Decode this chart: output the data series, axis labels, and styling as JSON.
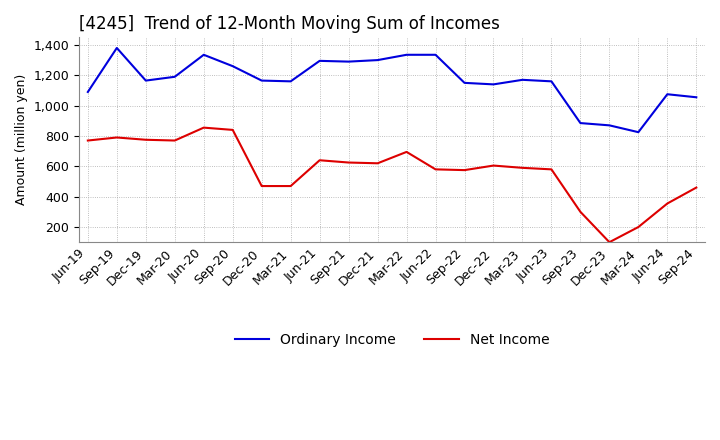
{
  "title": "[4245]  Trend of 12-Month Moving Sum of Incomes",
  "ylabel": "Amount (million yen)",
  "title_fontsize": 12,
  "label_fontsize": 9,
  "tick_fontsize": 9,
  "background_color": "#ffffff",
  "grid_color": "#aaaaaa",
  "ordinary_income_color": "#0000dd",
  "net_income_color": "#dd0000",
  "x_labels": [
    "Jun-19",
    "Sep-19",
    "Dec-19",
    "Mar-20",
    "Jun-20",
    "Sep-20",
    "Dec-20",
    "Mar-21",
    "Jun-21",
    "Sep-21",
    "Dec-21",
    "Mar-22",
    "Jun-22",
    "Sep-22",
    "Dec-22",
    "Mar-23",
    "Jun-23",
    "Sep-23",
    "Dec-23",
    "Mar-24",
    "Jun-24",
    "Sep-24"
  ],
  "ordinary_income": [
    1090,
    1380,
    1165,
    1190,
    1335,
    1260,
    1165,
    1160,
    1295,
    1290,
    1300,
    1335,
    1335,
    1150,
    1140,
    1170,
    1160,
    885,
    870,
    825,
    1075,
    1055
  ],
  "net_income": [
    770,
    790,
    775,
    770,
    855,
    840,
    470,
    470,
    640,
    625,
    620,
    695,
    580,
    575,
    605,
    590,
    580,
    300,
    100,
    200,
    355,
    460
  ],
  "ylim": [
    100,
    1450
  ],
  "yticks": [
    200,
    400,
    600,
    800,
    1000,
    1200,
    1400
  ]
}
